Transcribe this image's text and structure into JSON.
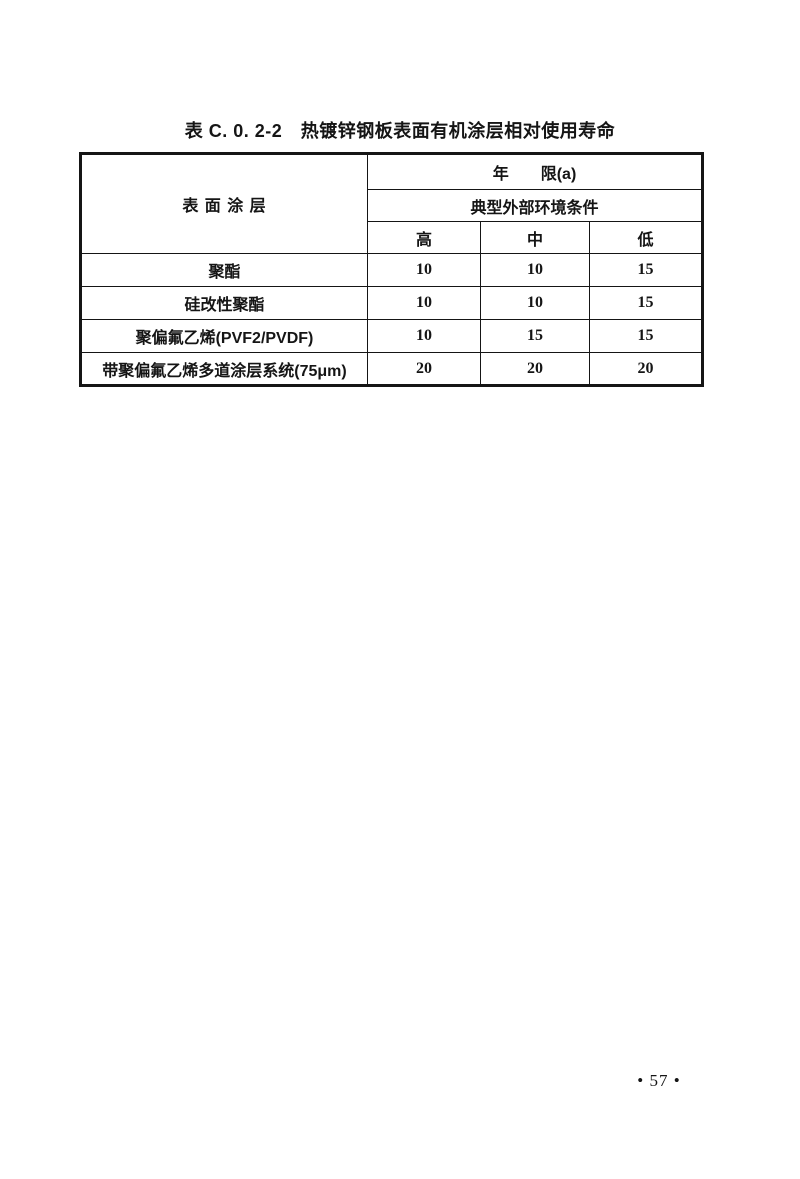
{
  "page": {
    "title": "表 C. 0. 2-2　热镀锌钢板表面有机涂层相对使用寿命",
    "page_number": "• 57 •"
  },
  "table": {
    "header": {
      "surface_coating": "表 面 涂 层",
      "year_limit": "年　　限(a)",
      "environment": "典型外部环境条件",
      "levels": [
        "高",
        "中",
        "低"
      ]
    },
    "rows": [
      {
        "label": "聚酯",
        "values": [
          "10",
          "10",
          "15"
        ]
      },
      {
        "label": "硅改性聚酯",
        "values": [
          "10",
          "10",
          "15"
        ]
      },
      {
        "label": "聚偏氟乙烯(PVF2/PVDF)",
        "values": [
          "10",
          "15",
          "15"
        ]
      },
      {
        "label": "带聚偏氟乙烯多道涂层系统(75μm)",
        "values": [
          "20",
          "20",
          "20"
        ]
      }
    ]
  }
}
